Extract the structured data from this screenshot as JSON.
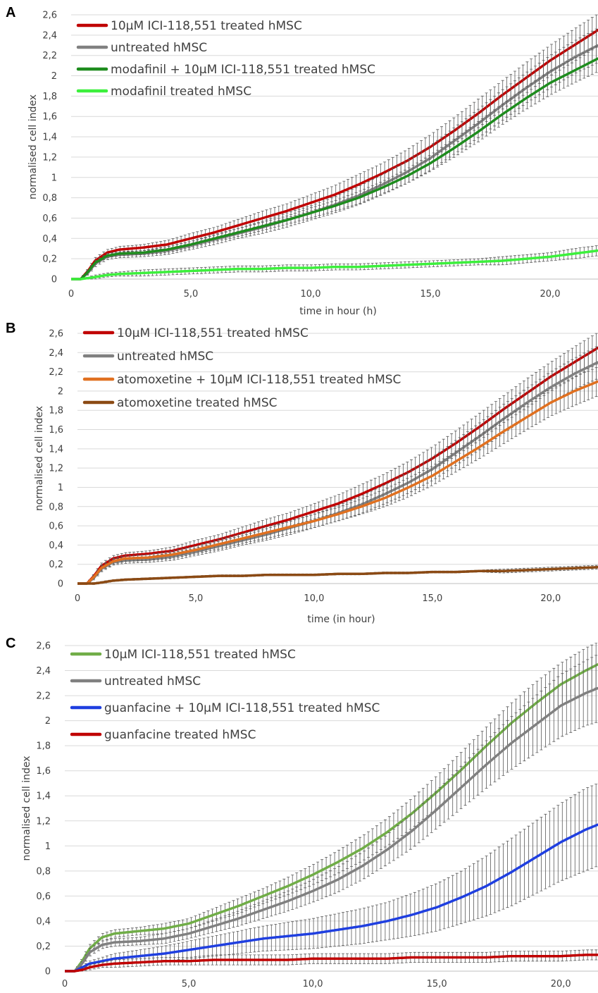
{
  "chart_data": [
    {
      "panel_label": "A",
      "type": "line",
      "xlabel": "time in hour (h)",
      "ylabel": "normalised cell index",
      "xlim": [
        0,
        22
      ],
      "ylim": [
        0,
        2.6
      ],
      "x_ticks": [
        "0",
        "5,0",
        "10,0",
        "15,0",
        "20,0"
      ],
      "y_ticks": [
        "0",
        "0,2",
        "0,4",
        "0,6",
        "0,8",
        "1",
        "1,2",
        "1,4",
        "1,6",
        "1,8",
        "2",
        "2,2",
        "2,4",
        "2,6"
      ],
      "grid": "horizontal",
      "legend_position": "top-left",
      "error_bars": true,
      "x": [
        0,
        0.4,
        0.7,
        1,
        1.5,
        2,
        3,
        4,
        5,
        6,
        7,
        8,
        9,
        10,
        11,
        12,
        13,
        14,
        15,
        16,
        17,
        18,
        19,
        20,
        21,
        22
      ],
      "series": [
        {
          "name": "10µM ICI-118,551 treated hMSC",
          "color": "#c00000",
          "values": [
            0,
            0,
            0.08,
            0.18,
            0.26,
            0.29,
            0.31,
            0.34,
            0.4,
            0.46,
            0.53,
            0.6,
            0.67,
            0.75,
            0.83,
            0.93,
            1.04,
            1.16,
            1.3,
            1.46,
            1.63,
            1.81,
            1.98,
            2.15,
            2.3,
            2.45
          ],
          "errors": [
            0,
            0,
            0.02,
            0.03,
            0.03,
            0.03,
            0.03,
            0.04,
            0.05,
            0.05,
            0.06,
            0.07,
            0.07,
            0.08,
            0.09,
            0.1,
            0.1,
            0.11,
            0.12,
            0.13,
            0.14,
            0.14,
            0.15,
            0.15,
            0.16,
            0.16
          ]
        },
        {
          "name": "untreated hMSC",
          "color": "#808080",
          "values": [
            0,
            0,
            0.06,
            0.15,
            0.22,
            0.24,
            0.25,
            0.28,
            0.33,
            0.39,
            0.45,
            0.51,
            0.58,
            0.65,
            0.73,
            0.82,
            0.93,
            1.05,
            1.19,
            1.36,
            1.53,
            1.71,
            1.88,
            2.04,
            2.18,
            2.3
          ],
          "errors": [
            0,
            0,
            0.02,
            0.03,
            0.03,
            0.03,
            0.03,
            0.04,
            0.04,
            0.05,
            0.05,
            0.06,
            0.07,
            0.07,
            0.08,
            0.09,
            0.1,
            0.11,
            0.12,
            0.13,
            0.14,
            0.15,
            0.15,
            0.16,
            0.16,
            0.17
          ]
        },
        {
          "name": "modafinil + 10µM ICI-118,551 treated hMSC",
          "color": "#1e8c1e",
          "values": [
            0,
            0,
            0.07,
            0.16,
            0.23,
            0.25,
            0.26,
            0.29,
            0.34,
            0.4,
            0.46,
            0.52,
            0.58,
            0.65,
            0.72,
            0.8,
            0.9,
            1.01,
            1.14,
            1.29,
            1.45,
            1.62,
            1.78,
            1.93,
            2.05,
            2.17
          ],
          "errors": [
            0,
            0,
            0.02,
            0.02,
            0.02,
            0.02,
            0.02,
            0.03,
            0.03,
            0.03,
            0.04,
            0.04,
            0.04,
            0.05,
            0.05,
            0.06,
            0.06,
            0.07,
            0.08,
            0.09,
            0.1,
            0.1,
            0.11,
            0.12,
            0.12,
            0.13
          ]
        },
        {
          "name": "modafinil treated hMSC",
          "color": "#3cf03c",
          "values": [
            0,
            0,
            0.01,
            0.02,
            0.04,
            0.05,
            0.06,
            0.07,
            0.08,
            0.09,
            0.1,
            0.1,
            0.11,
            0.11,
            0.12,
            0.12,
            0.13,
            0.14,
            0.15,
            0.16,
            0.17,
            0.18,
            0.2,
            0.22,
            0.25,
            0.28
          ],
          "errors": [
            0,
            0,
            0.01,
            0.02,
            0.02,
            0.02,
            0.03,
            0.03,
            0.03,
            0.03,
            0.03,
            0.03,
            0.03,
            0.03,
            0.03,
            0.03,
            0.03,
            0.03,
            0.03,
            0.03,
            0.03,
            0.04,
            0.04,
            0.04,
            0.05,
            0.05
          ]
        }
      ]
    },
    {
      "panel_label": "B",
      "type": "line",
      "xlabel": "time (in hour)",
      "ylabel": "normalised cell index",
      "xlim": [
        0,
        22
      ],
      "ylim": [
        0,
        2.6
      ],
      "x_ticks": [
        "0",
        "5,0",
        "10,0",
        "15,0",
        "20,0"
      ],
      "y_ticks": [
        "0",
        "0,2",
        "0,4",
        "0,6",
        "0,8",
        "1",
        "1,2",
        "1,4",
        "1,6",
        "1,8",
        "2",
        "2,2",
        "2,4",
        "2,6"
      ],
      "grid": "horizontal",
      "legend_position": "top-left",
      "error_bars": true,
      "x": [
        0,
        0.4,
        0.7,
        1,
        1.5,
        2,
        3,
        4,
        5,
        6,
        7,
        8,
        9,
        10,
        11,
        12,
        13,
        14,
        15,
        16,
        17,
        18,
        19,
        20,
        21,
        22
      ],
      "series": [
        {
          "name": "10µM ICI-118,551 treated hMSC",
          "color": "#c00000",
          "values": [
            0,
            0,
            0.08,
            0.18,
            0.26,
            0.29,
            0.31,
            0.34,
            0.4,
            0.46,
            0.53,
            0.6,
            0.67,
            0.75,
            0.83,
            0.93,
            1.04,
            1.16,
            1.3,
            1.46,
            1.63,
            1.81,
            1.98,
            2.15,
            2.3,
            2.45
          ],
          "errors": [
            0,
            0,
            0.02,
            0.03,
            0.03,
            0.03,
            0.03,
            0.04,
            0.05,
            0.05,
            0.06,
            0.07,
            0.07,
            0.08,
            0.09,
            0.1,
            0.1,
            0.11,
            0.12,
            0.13,
            0.14,
            0.14,
            0.15,
            0.15,
            0.16,
            0.16
          ]
        },
        {
          "name": "untreated hMSC",
          "color": "#808080",
          "values": [
            0,
            0,
            0.06,
            0.15,
            0.22,
            0.24,
            0.25,
            0.28,
            0.33,
            0.39,
            0.45,
            0.51,
            0.58,
            0.65,
            0.73,
            0.82,
            0.93,
            1.05,
            1.19,
            1.36,
            1.53,
            1.71,
            1.88,
            2.04,
            2.18,
            2.3
          ],
          "errors": [
            0,
            0,
            0.02,
            0.03,
            0.03,
            0.03,
            0.03,
            0.04,
            0.04,
            0.05,
            0.05,
            0.06,
            0.07,
            0.07,
            0.08,
            0.09,
            0.1,
            0.11,
            0.12,
            0.13,
            0.14,
            0.15,
            0.15,
            0.16,
            0.16,
            0.17
          ]
        },
        {
          "name": "atomoxetine + 10µM ICI-118,551 treated hMSC",
          "color": "#e07020",
          "values": [
            0,
            0,
            0.07,
            0.16,
            0.23,
            0.26,
            0.27,
            0.3,
            0.35,
            0.41,
            0.47,
            0.53,
            0.59,
            0.65,
            0.72,
            0.8,
            0.89,
            1.0,
            1.12,
            1.27,
            1.42,
            1.58,
            1.73,
            1.88,
            2.0,
            2.1
          ],
          "errors": [
            0,
            0,
            0.02,
            0.03,
            0.03,
            0.03,
            0.03,
            0.04,
            0.04,
            0.05,
            0.05,
            0.06,
            0.06,
            0.07,
            0.07,
            0.08,
            0.09,
            0.1,
            0.1,
            0.11,
            0.12,
            0.13,
            0.13,
            0.14,
            0.15,
            0.15
          ]
        },
        {
          "name": "atomoxetine treated hMSC",
          "color": "#8b4a14",
          "values": [
            0,
            0,
            0,
            0.01,
            0.03,
            0.04,
            0.05,
            0.06,
            0.07,
            0.08,
            0.08,
            0.09,
            0.09,
            0.09,
            0.1,
            0.1,
            0.11,
            0.11,
            0.12,
            0.12,
            0.13,
            0.13,
            0.14,
            0.15,
            0.16,
            0.17
          ],
          "errors": [
            0,
            0,
            0.01,
            0.01,
            0.01,
            0.01,
            0.01,
            0.01,
            0.01,
            0.01,
            0.01,
            0.01,
            0.01,
            0.01,
            0.01,
            0.01,
            0.01,
            0.01,
            0.01,
            0.01,
            0.01,
            0.02,
            0.02,
            0.02,
            0.02,
            0.02
          ]
        }
      ]
    },
    {
      "panel_label": "C",
      "type": "line",
      "xlabel": "",
      "ylabel": "normalised cell index",
      "xlim": [
        0,
        21.5
      ],
      "ylim": [
        0,
        2.6
      ],
      "x_ticks": [
        "0",
        "5,0",
        "10,0",
        "15,0",
        "20,0"
      ],
      "y_ticks": [
        "0",
        "0,2",
        "0,4",
        "0,6",
        "0,8",
        "1",
        "1,2",
        "1,4",
        "1,6",
        "1,8",
        "2",
        "2,2",
        "2,4",
        "2,6"
      ],
      "grid": "horizontal",
      "legend_position": "top-left",
      "error_bars": true,
      "x": [
        0,
        0.4,
        0.7,
        1,
        1.5,
        2,
        3,
        4,
        5,
        6,
        7,
        8,
        9,
        10,
        11,
        12,
        13,
        14,
        15,
        16,
        17,
        18,
        19,
        20,
        21,
        21.5
      ],
      "series": [
        {
          "name": "10µM ICI-118,551 treated hMSC",
          "color": "#70ad47",
          "values": [
            0,
            0,
            0.08,
            0.18,
            0.27,
            0.3,
            0.32,
            0.34,
            0.38,
            0.45,
            0.52,
            0.6,
            0.68,
            0.77,
            0.87,
            0.98,
            1.11,
            1.26,
            1.43,
            1.61,
            1.8,
            1.98,
            2.14,
            2.29,
            2.4,
            2.45
          ],
          "errors": [
            0,
            0,
            0.02,
            0.03,
            0.03,
            0.03,
            0.03,
            0.04,
            0.04,
            0.05,
            0.06,
            0.06,
            0.07,
            0.08,
            0.09,
            0.1,
            0.11,
            0.12,
            0.13,
            0.14,
            0.15,
            0.16,
            0.17,
            0.17,
            0.18,
            0.18
          ]
        },
        {
          "name": "untreated hMSC",
          "color": "#808080",
          "values": [
            0,
            0,
            0.06,
            0.15,
            0.21,
            0.23,
            0.24,
            0.26,
            0.3,
            0.36,
            0.42,
            0.49,
            0.56,
            0.64,
            0.73,
            0.84,
            0.97,
            1.12,
            1.29,
            1.47,
            1.65,
            1.82,
            1.97,
            2.12,
            2.22,
            2.26
          ],
          "errors": [
            0,
            0,
            0.02,
            0.03,
            0.03,
            0.03,
            0.03,
            0.04,
            0.04,
            0.05,
            0.06,
            0.07,
            0.08,
            0.09,
            0.1,
            0.11,
            0.12,
            0.14,
            0.15,
            0.17,
            0.19,
            0.21,
            0.23,
            0.25,
            0.26,
            0.27
          ]
        },
        {
          "name": "guanfacine + 10µM ICI-118,551 treated hMSC",
          "color": "#1f3fe0",
          "values": [
            0,
            0,
            0.03,
            0.06,
            0.08,
            0.1,
            0.12,
            0.14,
            0.17,
            0.2,
            0.23,
            0.26,
            0.28,
            0.3,
            0.33,
            0.36,
            0.4,
            0.45,
            0.51,
            0.59,
            0.68,
            0.79,
            0.91,
            1.03,
            1.13,
            1.17
          ],
          "errors": [
            0,
            0,
            0.01,
            0.02,
            0.03,
            0.04,
            0.05,
            0.06,
            0.07,
            0.08,
            0.09,
            0.1,
            0.11,
            0.12,
            0.13,
            0.14,
            0.15,
            0.17,
            0.19,
            0.21,
            0.24,
            0.27,
            0.29,
            0.31,
            0.33,
            0.33
          ]
        },
        {
          "name": "guanfacine treated hMSC",
          "color": "#c00000",
          "values": [
            0,
            0,
            0.01,
            0.03,
            0.05,
            0.06,
            0.07,
            0.08,
            0.08,
            0.09,
            0.09,
            0.09,
            0.09,
            0.1,
            0.1,
            0.1,
            0.1,
            0.11,
            0.11,
            0.11,
            0.11,
            0.12,
            0.12,
            0.12,
            0.13,
            0.13
          ],
          "errors": [
            0,
            0,
            0.01,
            0.02,
            0.02,
            0.03,
            0.03,
            0.03,
            0.03,
            0.04,
            0.04,
            0.04,
            0.04,
            0.04,
            0.04,
            0.04,
            0.04,
            0.04,
            0.04,
            0.04,
            0.04,
            0.04,
            0.04,
            0.04,
            0.04,
            0.04
          ]
        }
      ]
    }
  ]
}
